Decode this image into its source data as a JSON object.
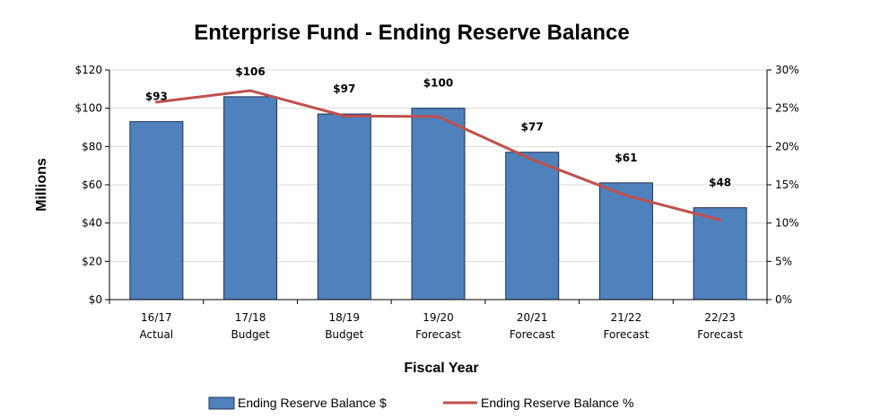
{
  "chart_data": {
    "type": "bar",
    "title": "Enterprise Fund - Ending Reserve Balance",
    "xlabel": "Fiscal Year",
    "ylabel": "Millions",
    "categories": [
      [
        "16/17",
        "Actual"
      ],
      [
        "17/18",
        "Budget"
      ],
      [
        "18/19",
        "Budget"
      ],
      [
        "19/20",
        "Forecast"
      ],
      [
        "20/21",
        "Forecast"
      ],
      [
        "21/22",
        "Forecast"
      ],
      [
        "22/23",
        "Forecast"
      ]
    ],
    "series": [
      {
        "name": "Ending Reserve Balance $",
        "type": "bar",
        "axis": "left",
        "values": [
          93,
          106,
          97,
          100,
          77,
          61,
          48
        ],
        "labels": [
          "$93",
          "$106",
          "$97",
          "$100",
          "$77",
          "$61",
          "$48"
        ],
        "color": "#4f81bd"
      },
      {
        "name": "Ending Reserve Balance %",
        "type": "line",
        "axis": "right",
        "values": [
          25.8,
          27.3,
          24.0,
          23.9,
          18.3,
          13.6,
          10.4
        ],
        "color": "#c0504d"
      }
    ],
    "ylim": [
      0,
      120
    ],
    "yticks": [
      "$0",
      "$20",
      "$40",
      "$60",
      "$80",
      "$100",
      "$120"
    ],
    "y2lim": [
      0,
      30
    ],
    "y2ticks": [
      "0%",
      "5%",
      "10%",
      "15%",
      "20%",
      "25%",
      "30%"
    ],
    "grid": true,
    "legend_position": "bottom"
  }
}
